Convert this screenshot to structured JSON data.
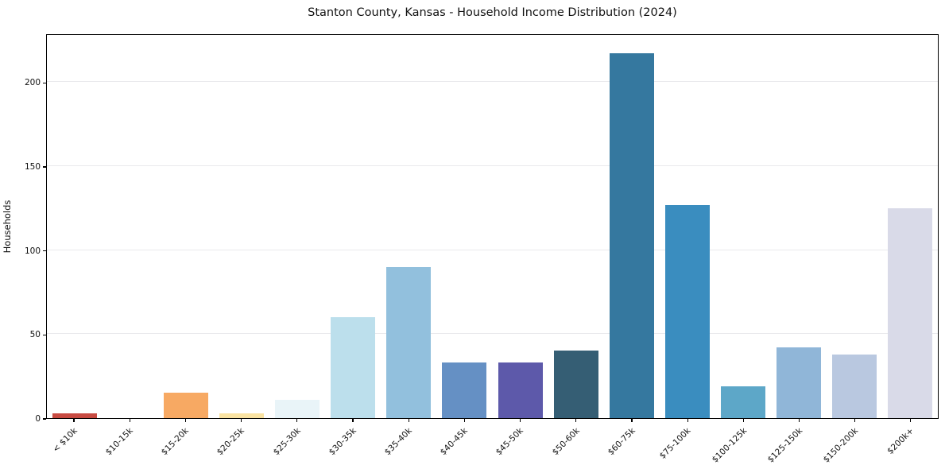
{
  "chart_data": {
    "type": "bar",
    "title": "Stanton County, Kansas - Household Income Distribution (2024)",
    "xlabel": "",
    "ylabel": "Households",
    "categories": [
      "< $10k",
      "$10-15k",
      "$15-20k",
      "$20-25k",
      "$25-30k",
      "$30-35k",
      "$35-40k",
      "$40-45k",
      "$45-50k",
      "$50-60k",
      "$60-75k",
      "$75-100k",
      "$100-125k",
      "$125-150k",
      "$150-200k",
      "$200k+"
    ],
    "values": [
      3,
      0,
      15,
      3,
      11,
      60,
      90,
      33,
      33,
      40,
      217,
      127,
      19,
      42,
      38,
      125
    ],
    "bar_colors": [
      "#c84b42",
      "#e8864f",
      "#f7a963",
      "#fae3a2",
      "#e9f4f8",
      "#bcdfec",
      "#92c0dd",
      "#6590c4",
      "#5d59aa",
      "#355e74",
      "#35789f",
      "#3a8dbf",
      "#5da7c8",
      "#90b6d8",
      "#b9c8e0",
      "#d9dae8"
    ],
    "yticks": [
      0,
      50,
      100,
      150,
      200
    ],
    "ylim": [
      0,
      229
    ],
    "grid": "horizontal-light",
    "legend": "none",
    "plot_background": "#ffffff",
    "spine_color": "#000000",
    "gridline_color": "#e9e9ec"
  }
}
